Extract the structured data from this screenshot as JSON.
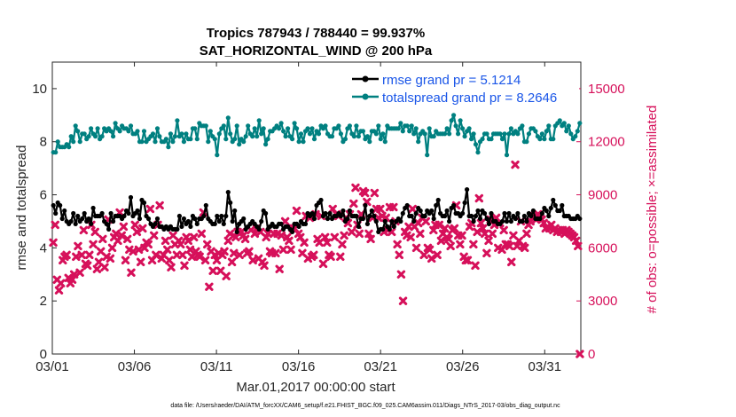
{
  "chart_data": {
    "type": "line",
    "title_line1": "Tropics 787943 / 788440 = 99.937%",
    "title_line2": "SAT_HORIZONTAL_WIND @ 200 hPa",
    "xlabel": "Mar.01,2017 00:00:00 start",
    "ylabel": "rmse and totalspread",
    "ylabel_right": "# of obs: o=possible; ×=assimilated",
    "footer": "data file: /Users/raeder/DAI/ATM_forcXX/CAM6_setup/f.e21.FHIST_BGC.f09_025.CAM6assim.011/Diags_NTrS_2017-03/obs_diag_output.nc",
    "xlim": [
      0,
      32.2
    ],
    "ylim": [
      0,
      11
    ],
    "ylim_right": [
      0,
      16500
    ],
    "x_ticks": [
      0,
      5,
      10,
      15,
      20,
      25,
      30
    ],
    "x_tick_labels": [
      "03/01",
      "03/06",
      "03/11",
      "03/16",
      "03/21",
      "03/26",
      "03/31"
    ],
    "y_ticks": [
      0,
      2,
      4,
      6,
      8,
      10
    ],
    "y_tick_labels": [
      "0",
      "2",
      "4",
      "6",
      "8",
      "10"
    ],
    "y_right_ticks": [
      0,
      3000,
      6000,
      9000,
      12000,
      15000
    ],
    "y_right_tick_labels": [
      "0",
      "3000",
      "6000",
      "9000",
      "12000",
      "15000"
    ],
    "series": [
      {
        "name": "rmse grand pr = 5.1214",
        "color": "#000000",
        "axis": "left",
        "values": [
          5.6,
          5.3,
          5.7,
          5.6,
          5.1,
          5.4,
          5.0,
          4.9,
          5.0,
          5.3,
          4.9,
          5.2,
          5.0,
          5.1,
          5.3,
          5.0,
          5.1,
          4.9,
          5.5,
          5.2,
          5.2,
          5.2,
          5.3,
          5.0,
          4.9,
          4.7,
          5.3,
          5.0,
          5.2,
          5.2,
          5.2,
          5.1,
          5.2,
          5.4,
          5.3,
          5.9,
          5.2,
          5.3,
          5.4,
          5.1,
          5.8,
          5.7,
          5.2,
          5.1,
          4.9,
          4.8,
          4.9,
          5.1,
          4.8,
          4.8,
          4.7,
          4.8,
          4.7,
          4.8,
          4.7,
          4.7,
          4.7,
          5.2,
          4.8,
          5.1,
          4.9,
          5.0,
          4.8,
          5.2,
          5.1,
          4.9,
          5.1,
          5.1,
          5.2,
          5.6,
          5.1,
          5.0,
          4.9,
          4.9,
          5.2,
          5.0,
          5.2,
          4.9,
          5.2,
          6.1,
          5.7,
          5.0,
          5.4,
          4.6,
          4.9,
          5.0,
          5.1,
          4.7,
          4.8,
          4.9,
          5.0,
          4.9,
          4.8,
          4.7,
          5.0,
          5.4,
          5.3,
          4.7,
          4.8,
          4.9,
          4.8,
          4.8,
          4.9,
          4.9,
          4.7,
          4.8,
          4.8,
          4.7,
          4.6,
          4.9,
          4.9,
          4.8,
          5.0,
          4.9,
          4.9,
          5.3,
          5.2,
          5.3,
          5.1,
          5.6,
          5.7,
          5.8,
          5.2,
          5.3,
          5.1,
          5.3,
          5.1,
          5.2,
          5.2,
          5.3,
          5.2,
          5.4,
          5.0,
          5.1,
          5.4,
          5.2,
          5.2,
          5.2,
          4.8,
          5.1,
          5.1,
          5.6,
          4.9,
          5.2,
          5.4,
          5.2,
          5.0,
          4.6,
          4.7,
          4.7,
          5.0,
          4.8,
          4.7,
          5.0,
          4.8,
          5.0,
          5.1,
          5.0,
          5.3,
          5.5,
          5.6,
          5.2,
          5.2,
          5.0,
          5.3,
          5.5,
          5.4,
          5.2,
          5.2,
          5.4,
          5.3,
          5.4,
          5.1,
          5.6,
          5.8,
          5.3,
          5.2,
          5.2,
          5.4,
          5.0,
          5.5,
          5.6,
          5.3,
          5.3,
          5.2,
          5.3,
          5.7,
          6.2,
          5.2,
          5.2,
          5.0,
          5.2,
          5.4,
          5.1,
          5.4,
          5.3,
          5.1,
          4.9,
          5.3,
          5.0,
          5.0,
          4.9,
          4.9,
          5.0,
          5.3,
          5.0,
          5.3,
          5.0,
          5.2,
          5.1,
          5.3,
          5.0,
          5.0,
          5.2,
          5.0,
          5.3,
          5.2,
          5.4,
          5.1,
          5.1,
          5.1,
          5.3,
          5.5,
          5.4,
          5.2,
          5.5,
          5.8,
          5.6,
          5.4,
          5.4,
          5.6,
          5.2,
          5.2,
          5.2,
          5.1,
          5.1,
          5.1,
          5.2,
          5.1
        ]
      },
      {
        "name": "totalspread grand pr = 8.2646",
        "color": "#008080",
        "axis": "left",
        "values": [
          7.6,
          7.6,
          8.0,
          7.8,
          7.8,
          7.8,
          7.9,
          7.8,
          8.2,
          8.0,
          8.6,
          8.4,
          8.0,
          8.3,
          8.3,
          8.1,
          8.2,
          8.5,
          8.3,
          8.2,
          8.5,
          8.1,
          8.2,
          8.5,
          8.4,
          8.5,
          8.4,
          8.2,
          8.7,
          8.5,
          8.4,
          8.6,
          8.5,
          8.5,
          8.4,
          8.6,
          8.3,
          8.3,
          8.4,
          8.0,
          8.0,
          8.4,
          8.0,
          8.1,
          8.2,
          8.3,
          8.0,
          8.5,
          8.2,
          8.0,
          8.0,
          8.1,
          7.8,
          8.3,
          8.0,
          8.2,
          8.8,
          8.2,
          8.3,
          8.0,
          8.3,
          8.1,
          8.1,
          8.5,
          8.5,
          8.1,
          8.7,
          8.6,
          8.6,
          8.6,
          8.0,
          8.4,
          8.2,
          8.1,
          7.5,
          8.3,
          8.5,
          8.6,
          8.1,
          8.9,
          8.3,
          8.0,
          8.1,
          8.6,
          7.9,
          8.1,
          8.0,
          8.2,
          8.6,
          8.3,
          8.2,
          8.5,
          8.2,
          8.8,
          8.3,
          8.5,
          7.9,
          8.1,
          8.4,
          8.4,
          8.5,
          8.6,
          8.5,
          8.7,
          8.4,
          8.2,
          8.5,
          8.2,
          8.1,
          8.7,
          8.5,
          8.0,
          8.3,
          8.0,
          8.4,
          8.5,
          8.3,
          8.5,
          8.1,
          8.4,
          8.3,
          8.6,
          8.5,
          8.6,
          8.3,
          8.2,
          8.2,
          8.5,
          8.5,
          8.6,
          8.3,
          8.0,
          8.1,
          8.5,
          8.6,
          8.3,
          8.2,
          8.6,
          8.2,
          8.4,
          8.4,
          8.1,
          8.2,
          8.0,
          8.4,
          8.4,
          8.3,
          8.6,
          8.1,
          8.3,
          8.0,
          8.6,
          8.5,
          8.5,
          8.5,
          8.5,
          8.5,
          8.7,
          8.4,
          8.6,
          8.6,
          8.4,
          8.6,
          8.3,
          8.5,
          8.0,
          8.3,
          8.4,
          8.3,
          7.5,
          8.5,
          8.2,
          8.2,
          8.4,
          8.3,
          8.3,
          8.3,
          8.3,
          8.5,
          8.3,
          8.8,
          9.0,
          8.6,
          8.3,
          8.8,
          8.5,
          8.2,
          8.4,
          8.5,
          8.1,
          8.3,
          7.9,
          7.6,
          8.0,
          8.1,
          8.3,
          8.3,
          8.1,
          8.1,
          8.3,
          8.3,
          8.3,
          8.3,
          8.1,
          8.3,
          7.5,
          8.3,
          8.5,
          8.3,
          8.4,
          8.3,
          8.5,
          8.6,
          8.0,
          8.0,
          8.3,
          8.5,
          8.5,
          8.4,
          8.2,
          8.1,
          8.3,
          8.1,
          8.4,
          8.6,
          8.1,
          8.1,
          8.6,
          8.7,
          8.8,
          8.6,
          8.7,
          8.4,
          8.6,
          8.3,
          8.1,
          8.2,
          8.4,
          8.7
        ]
      },
      {
        "name": "# assimilated",
        "color": "#d6105a",
        "axis": "right",
        "values": [
          6300,
          7300,
          4200,
          3600,
          4000,
          5300,
          5500,
          5600,
          4300,
          4000,
          4200,
          4500,
          5500,
          6100,
          4600,
          5600,
          7000,
          5100,
          5000,
          5600,
          7300,
          6200,
          6900,
          4800,
          5200,
          5800,
          6500,
          4900,
          5500,
          7600,
          5400,
          6000,
          6600,
          6800,
          6400,
          8000,
          6700,
          7200,
          5300,
          6500,
          5900,
          4600,
          5800,
          7300,
          6900,
          5900,
          5200,
          7100,
          6000,
          6300,
          6200,
          8200,
          5300,
          6700,
          5600,
          7300,
          8400,
          5400,
          5600,
          6400,
          5900,
          5300,
          4900,
          6700,
          6200,
          5600,
          6400,
          6200,
          5600,
          5000,
          6600,
          6400,
          5900,
          5500,
          6600,
          5800,
          5600,
          5500,
          6800,
          8000,
          5300,
          6200,
          3800,
          5800,
          4700,
          5600,
          5300,
          5700,
          4700,
          5600,
          5800,
          4400,
          6400,
          6800,
          5200,
          5700,
          6600,
          6900,
          5600,
          6900,
          6700,
          6500,
          5700,
          5800,
          7000,
          5300,
          6800,
          7100,
          5400,
          6900,
          5200,
          5000,
          6600,
          6800,
          5800,
          5700,
          6800,
          5700,
          6800,
          4800,
          6700,
          5900,
          7500,
          6600,
          6400,
          5900,
          7100,
          7100,
          8100,
          6800,
          6600,
          5700,
          6300,
          7800,
          5400,
          7700,
          5500,
          5600,
          7900,
          6500,
          6300,
          7800,
          5100,
          6600,
          6300,
          5600,
          5500,
          8200,
          6600,
          7900,
          7800,
          5500,
          6200,
          6700,
          7700,
          7400,
          7900,
          6900,
          8500,
          9400,
          7300,
          6800,
          7900,
          9200,
          9100,
          8600,
          6800,
          6500,
          7700,
          9100,
          8200,
          7700,
          8200,
          7800,
          6900,
          7700,
          7000,
          8300,
          6900,
          8300,
          7500,
          6200,
          5600,
          4500,
          3000,
          6900,
          6700,
          7200,
          6600,
          8200,
          7200,
          6000,
          7400,
          6800,
          7700,
          5600,
          7500,
          6000,
          5900,
          5400,
          7000,
          7300,
          5600,
          7300,
          6400,
          6800,
          7100,
          6600,
          6500,
          6100,
          7000,
          7100,
          8400,
          6700,
          6200,
          6700,
          5500,
          5300,
          5300,
          7200,
          7400,
          6200,
          5000,
          6900,
          8800,
          7400,
          7100,
          6800,
          5700,
          6400,
          7600,
          6800,
          7300,
          7700,
          6000,
          7400,
          5900,
          7000,
          6200,
          6200,
          6100,
          5200,
          6700,
          10700,
          6100,
          6400,
          7500,
          6100,
          6000,
          6800,
          7300,
          7500,
          7700,
          7800,
          7600,
          7900,
          7700,
          7600,
          7400,
          7100,
          7200,
          7100,
          7300,
          7000,
          7100,
          6900,
          7000,
          6900,
          7000,
          6800,
          7000,
          6900,
          6800,
          6700,
          6600,
          6400,
          6100,
          0
        ]
      }
    ]
  }
}
